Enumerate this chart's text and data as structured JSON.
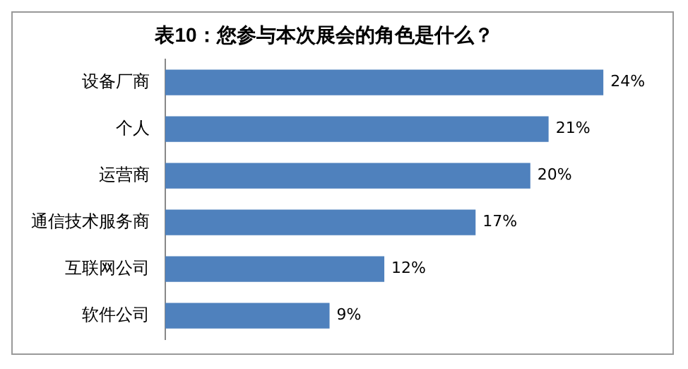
{
  "chart_data": {
    "type": "bar",
    "orientation": "horizontal",
    "title": "表10：您参与本次展会的角色是什么？",
    "categories": [
      "设备厂商",
      "个人",
      "运营商",
      "通信技术服务商",
      "互联网公司",
      "软件公司"
    ],
    "values": [
      24,
      21,
      20,
      17,
      12,
      9
    ],
    "value_labels": [
      "24%",
      "21%",
      "20%",
      "17%",
      "12%",
      "9%"
    ],
    "color": "#4f81bd",
    "grid": false,
    "legend": false
  }
}
